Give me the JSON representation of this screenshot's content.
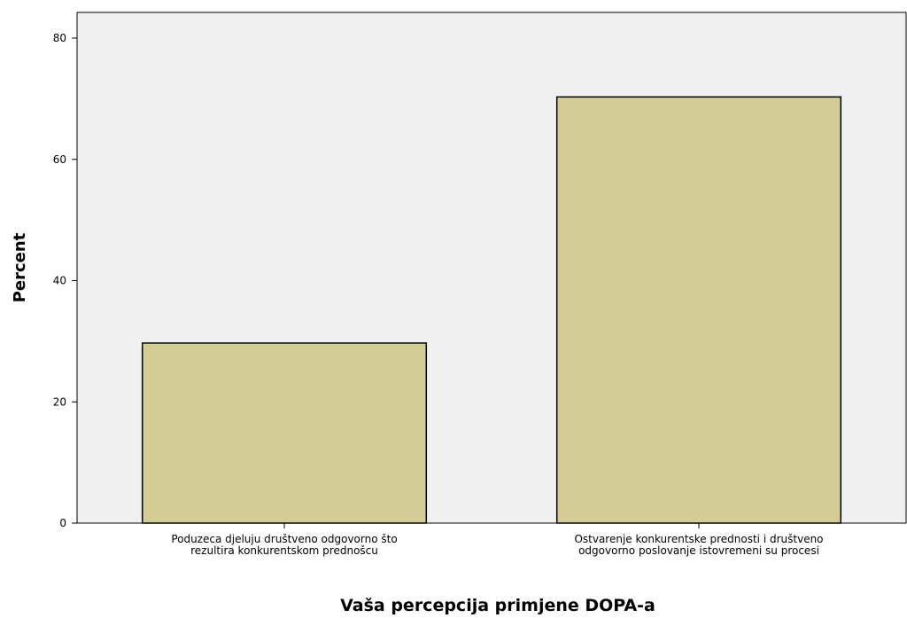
{
  "chart_data": {
    "type": "bar",
    "xlabel": "Vaša percepcija primjene DOPA-a",
    "ylabel": "Percent",
    "ylim": [
      0,
      80
    ],
    "yticks": [
      0,
      20,
      40,
      60,
      80
    ],
    "grid": false,
    "categories": [
      [
        "Poduzeca djeluju društveno odgovorno što",
        "rezultira konkurentskom prednošcu"
      ],
      [
        "Ostvarenje konkurentske prednosti i društveno",
        "odgovorno poslovanje istovremeni su procesi"
      ]
    ],
    "values": [
      29.7,
      70.3
    ],
    "colors": {
      "bar_fill": "#d3cd95",
      "plot_background": "#f0f0f0",
      "stroke": "#000000"
    }
  }
}
